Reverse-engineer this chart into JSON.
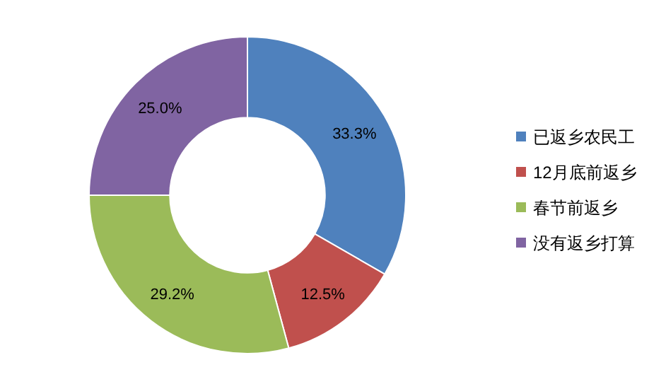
{
  "chart_data": {
    "type": "donut",
    "categories": [
      "已返乡农民工",
      "12月底前返乡",
      "春节前返乡",
      "没有返乡打算"
    ],
    "values": [
      33.3,
      12.5,
      29.2,
      25.0
    ],
    "colors": [
      "#4f81bd",
      "#c0504d",
      "#9bbb59",
      "#8064a2"
    ],
    "value_labels": [
      "33.3%",
      "12.5%",
      "29.2%",
      "25.0%"
    ],
    "legend": "right"
  }
}
